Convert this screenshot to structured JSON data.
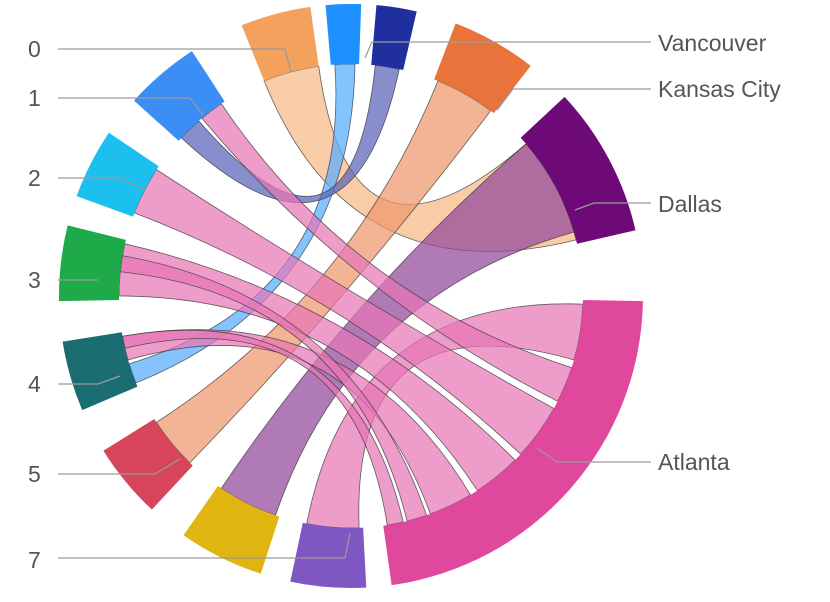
{
  "chart_data": {
    "type": "chord",
    "title": "",
    "nodes": [
      {
        "id": "0",
        "label": "0",
        "color": "#F4A15D",
        "side": "left"
      },
      {
        "id": "v_blue",
        "label": "",
        "color": "#1E90FF",
        "side": "left"
      },
      {
        "id": "v_navy",
        "label": "",
        "color": "#1F2FA0",
        "side": "left"
      },
      {
        "id": "kansas",
        "label": "Kansas City",
        "color": "#E8743B",
        "side": "right"
      },
      {
        "id": "dallas",
        "label": "Dallas",
        "color": "#6E0A78",
        "side": "right"
      },
      {
        "id": "atlanta",
        "label": "Atlanta",
        "color": "#E0489E",
        "side": "right"
      },
      {
        "id": "7",
        "label": "7",
        "color": "#7E57C2",
        "side": "left"
      },
      {
        "id": "6_yellow",
        "label": "",
        "color": "#E0B411",
        "side": "left"
      },
      {
        "id": "5",
        "label": "5",
        "color": "#D6455A",
        "side": "left"
      },
      {
        "id": "4",
        "label": "4",
        "color": "#1A6E72",
        "side": "left"
      },
      {
        "id": "3",
        "label": "3",
        "color": "#1FAA4A",
        "side": "left"
      },
      {
        "id": "2",
        "label": "2",
        "color": "#1BC0EE",
        "side": "left"
      },
      {
        "id": "1",
        "label": "1",
        "color": "#3B8EF5",
        "side": "left"
      }
    ],
    "links": [
      {
        "source": "0",
        "target": "dallas",
        "value": 1
      },
      {
        "source": "v_blue",
        "target": "4",
        "value": 1
      },
      {
        "source": "v_navy",
        "target": "1",
        "value": 1
      },
      {
        "source": "kansas",
        "target": "5",
        "value": 1
      },
      {
        "source": "dallas",
        "target": "6_yellow",
        "value": 1
      },
      {
        "source": "atlanta",
        "target": "7",
        "value": 1
      },
      {
        "source": "atlanta",
        "target": "1",
        "value": 1
      },
      {
        "source": "atlanta",
        "target": "2",
        "value": 1
      },
      {
        "source": "atlanta",
        "target": "3",
        "value": 1
      },
      {
        "source": "atlanta",
        "target": "4",
        "value": 1
      },
      {
        "source": "atlanta",
        "target": "3",
        "value": 1
      },
      {
        "source": "atlanta",
        "target": "4",
        "value": 1
      }
    ],
    "left_labels": [
      "0",
      "1",
      "2",
      "3",
      "4",
      "5",
      "7"
    ],
    "right_labels": [
      "Vancouver",
      "Kansas City",
      "Dallas",
      "Atlanta"
    ]
  }
}
